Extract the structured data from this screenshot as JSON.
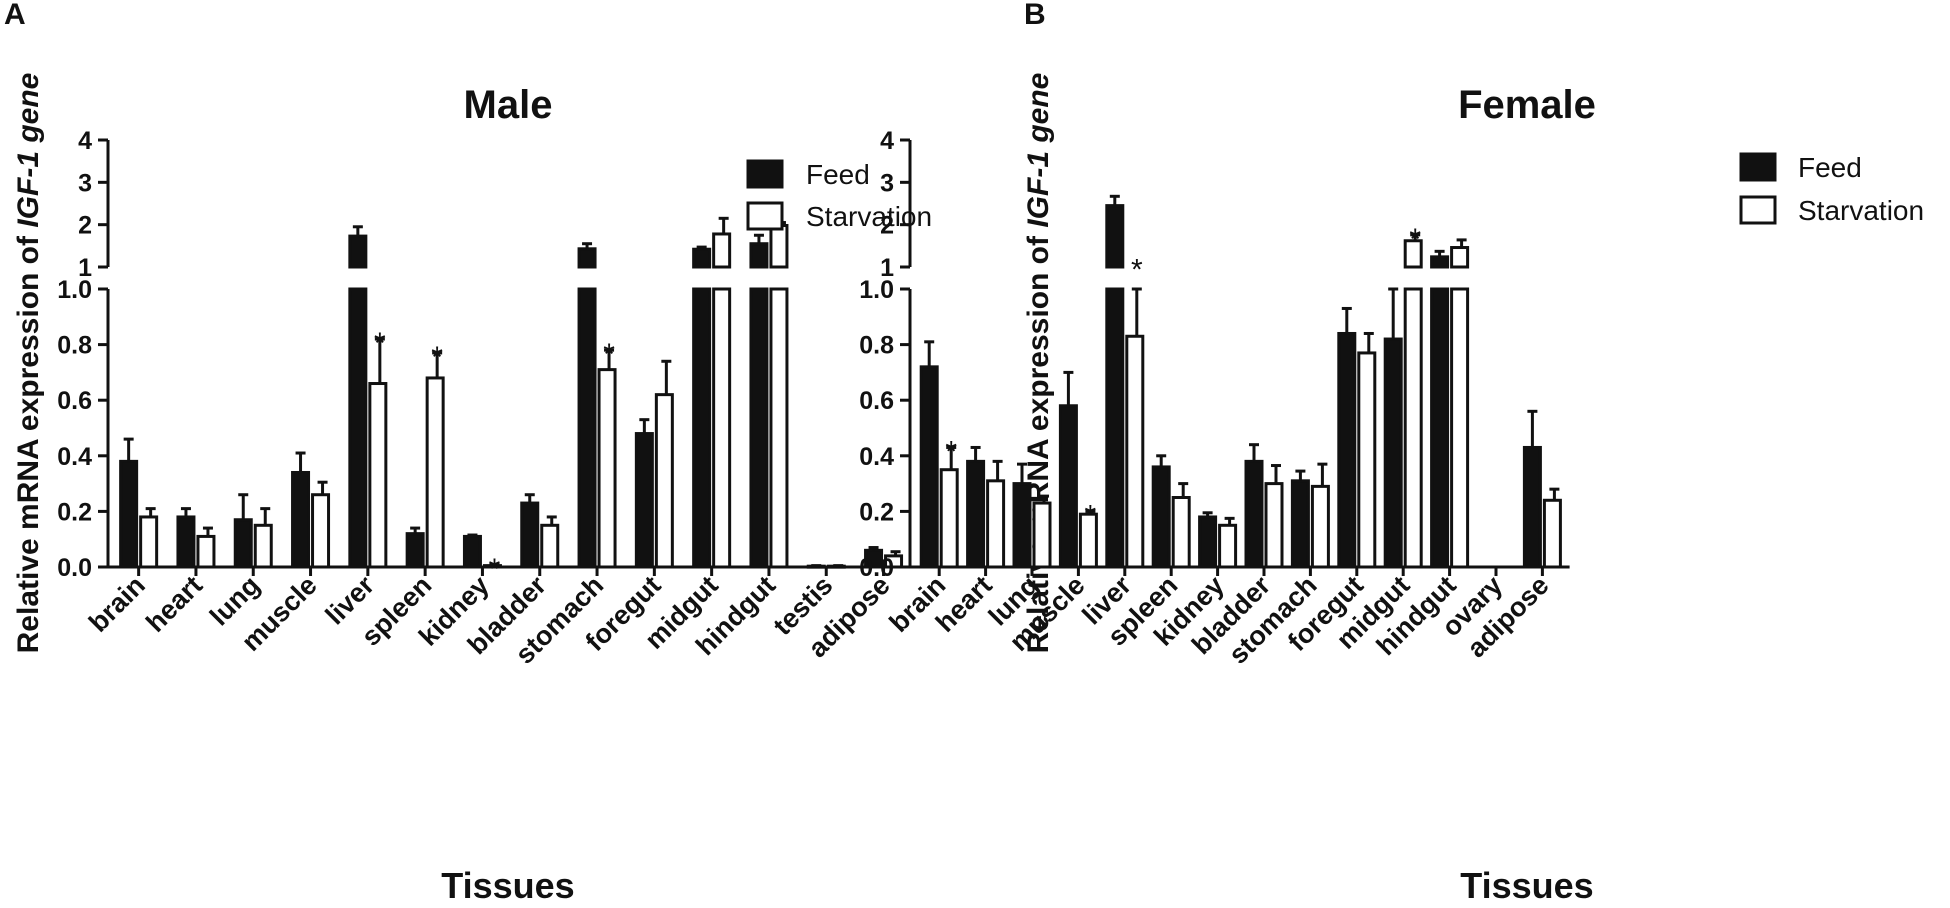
{
  "figure": {
    "panels": [
      {
        "letter": "A",
        "legend": [
          "Feed",
          "Starvation"
        ]
      },
      {
        "letter": "B",
        "legend": [
          "Feed",
          "Starvation"
        ]
      }
    ]
  },
  "chart_data": [
    {
      "type": "bar",
      "title": "Male",
      "xlabel": "Tissues",
      "ylabel_plain": "Relative mRNA expression of ",
      "ylabel_italic": "IGF-1 gene",
      "ylim": [
        0,
        4
      ],
      "axis_break": [
        1.0,
        1.0
      ],
      "yticks_lower": [
        "0.0",
        "0.2",
        "0.4",
        "0.6",
        "0.8",
        "1.0"
      ],
      "yticks_upper": [
        "1",
        "2",
        "3",
        "4"
      ],
      "categories": [
        "brain",
        "heart",
        "lung",
        "muscle",
        "liver",
        "spleen",
        "kidney",
        "bladder",
        "stomach",
        "foregut",
        "midgut",
        "hindgut",
        "testis",
        "adipose"
      ],
      "series": [
        {
          "name": "Feed",
          "color": "#111111",
          "values": [
            0.38,
            0.18,
            0.17,
            0.34,
            1.73,
            0.12,
            0.11,
            0.23,
            1.43,
            0.48,
            1.42,
            1.55,
            0.003,
            0.06
          ],
          "errors": [
            0.08,
            0.03,
            0.09,
            0.07,
            0.22,
            0.02,
            0.005,
            0.03,
            0.12,
            0.05,
            0.05,
            0.2,
            0.002,
            0.01
          ]
        },
        {
          "name": "Starvation",
          "color": "#ffffff",
          "values": [
            0.18,
            0.11,
            0.15,
            0.26,
            0.66,
            0.68,
            0.005,
            0.15,
            0.71,
            0.62,
            1.78,
            1.98,
            0.003,
            0.04
          ],
          "errors": [
            0.03,
            0.03,
            0.06,
            0.045,
            0.16,
            0.09,
            0.003,
            0.03,
            0.07,
            0.12,
            0.37,
            0.07,
            0.002,
            0.015
          ]
        }
      ],
      "significance": [
        {
          "category": "liver",
          "series": "Starvation",
          "mark": "*"
        },
        {
          "category": "spleen",
          "series": "Starvation",
          "mark": "*"
        },
        {
          "category": "kidney",
          "series": "Starvation",
          "mark": "*"
        },
        {
          "category": "stomach",
          "series": "Starvation",
          "mark": "*"
        }
      ]
    },
    {
      "type": "bar",
      "title": "Female",
      "xlabel": "Tissues",
      "ylabel_plain": "Relative mRNA expression of ",
      "ylabel_italic": "IGF-1 gene",
      "ylim": [
        0,
        4
      ],
      "axis_break": [
        1.0,
        1.0
      ],
      "yticks_lower": [
        "0.0",
        "0.2",
        "0.4",
        "0.6",
        "0.8",
        "1.0"
      ],
      "yticks_upper": [
        "1",
        "2",
        "3",
        "4"
      ],
      "categories": [
        "brain",
        "heart",
        "lung",
        "muscle",
        "liver",
        "spleen",
        "kidney",
        "bladder",
        "stomach",
        "foregut",
        "midgut",
        "hindgut",
        "ovary",
        "adipose"
      ],
      "series": [
        {
          "name": "Feed",
          "color": "#111111",
          "values": [
            0.72,
            0.38,
            0.3,
            0.58,
            2.45,
            0.36,
            0.18,
            0.38,
            0.31,
            0.84,
            0.82,
            1.24,
            0.0,
            0.43
          ],
          "errors": [
            0.09,
            0.05,
            0.07,
            0.12,
            0.22,
            0.04,
            0.015,
            0.06,
            0.035,
            0.09,
            0.2,
            0.13,
            0.0,
            0.13
          ]
        },
        {
          "name": "Starvation",
          "color": "#ffffff",
          "values": [
            0.35,
            0.31,
            0.23,
            0.19,
            0.83,
            0.25,
            0.15,
            0.3,
            0.29,
            0.77,
            1.62,
            1.46,
            0.0,
            0.24
          ],
          "errors": [
            0.08,
            0.07,
            0.025,
            0.01,
            0.2,
            0.05,
            0.025,
            0.065,
            0.08,
            0.07,
            0.14,
            0.18,
            0.0,
            0.04
          ]
        }
      ],
      "significance": [
        {
          "category": "brain",
          "series": "Starvation",
          "mark": "*"
        },
        {
          "category": "muscle",
          "series": "Starvation",
          "mark": "*"
        },
        {
          "category": "liver",
          "series": "Starvation",
          "mark": "*"
        },
        {
          "category": "midgut",
          "series": "Starvation",
          "mark": "*"
        }
      ]
    }
  ]
}
